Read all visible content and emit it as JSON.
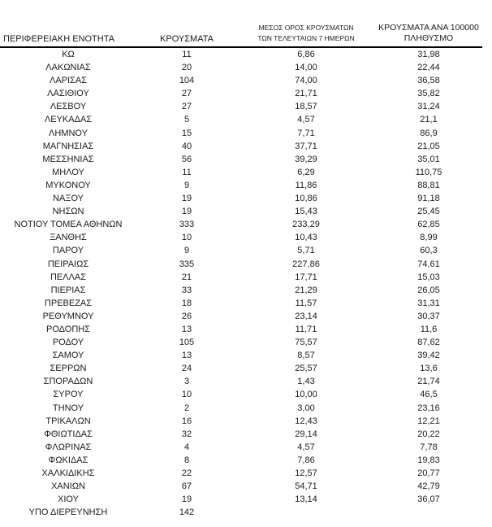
{
  "table": {
    "headers": {
      "region": "ΠΕΡΙΦΕΡΕΙΑΚΗ ΕΝΟΤΗΤΑ",
      "cases": "ΚΡΟΥΣΜΑΤΑ",
      "avg7_line1": "ΜΕΣΟΣ ΟΡΟΣ ΚΡΟΥΣΜΑΤΩΝ",
      "avg7_line2": "ΤΩΝ ΤΕΛΕΥΤΑΙΩΝ 7 ΗΜΕΡΩΝ",
      "per100k_line1": "ΚΡΟΥΣΜΑΤΑ ΑΝΑ 100000",
      "per100k_line2": "ΠΛΗΘΥΣΜΟ"
    },
    "rows": [
      {
        "region": "ΚΩ",
        "cases": "11",
        "avg7": "6,86",
        "per100k": "31,98"
      },
      {
        "region": "ΛΑΚΩΝΙΑΣ",
        "cases": "20",
        "avg7": "14,00",
        "per100k": "22,44"
      },
      {
        "region": "ΛΑΡΙΣΑΣ",
        "cases": "104",
        "avg7": "74,00",
        "per100k": "36,58"
      },
      {
        "region": "ΛΑΣΙΘΙΟΥ",
        "cases": "27",
        "avg7": "21,71",
        "per100k": "35,82"
      },
      {
        "region": "ΛΕΣΒΟΥ",
        "cases": "27",
        "avg7": "18,57",
        "per100k": "31,24"
      },
      {
        "region": "ΛΕΥΚΑΔΑΣ",
        "cases": "5",
        "avg7": "4,57",
        "per100k": "21,1"
      },
      {
        "region": "ΛΗΜΝΟΥ",
        "cases": "15",
        "avg7": "7,71",
        "per100k": "86,9"
      },
      {
        "region": "ΜΑΓΝΗΣΙΑΣ",
        "cases": "40",
        "avg7": "37,71",
        "per100k": "21,05"
      },
      {
        "region": "ΜΕΣΣΗΝΙΑΣ",
        "cases": "56",
        "avg7": "39,29",
        "per100k": "35,01"
      },
      {
        "region": "ΜΗΛΟΥ",
        "cases": "11",
        "avg7": "6,29",
        "per100k": "110,75"
      },
      {
        "region": "ΜΥΚΟΝΟΥ",
        "cases": "9",
        "avg7": "11,86",
        "per100k": "88,81"
      },
      {
        "region": "ΝΑΞΟΥ",
        "cases": "19",
        "avg7": "10,86",
        "per100k": "91,18"
      },
      {
        "region": "ΝΗΣΩΝ",
        "cases": "19",
        "avg7": "15,43",
        "per100k": "25,45"
      },
      {
        "region": "ΝΟΤΙΟΥ ΤΟΜΕΑ ΑΘΗΝΩΝ",
        "cases": "333",
        "avg7": "233,29",
        "per100k": "62,85"
      },
      {
        "region": "ΞΑΝΘΗΣ",
        "cases": "10",
        "avg7": "10,43",
        "per100k": "8,99"
      },
      {
        "region": "ΠΑΡΟΥ",
        "cases": "9",
        "avg7": "5,71",
        "per100k": "60,3"
      },
      {
        "region": "ΠΕΙΡΑΙΩΣ",
        "cases": "335",
        "avg7": "227,86",
        "per100k": "74,61"
      },
      {
        "region": "ΠΕΛΛΑΣ",
        "cases": "21",
        "avg7": "17,71",
        "per100k": "15,03"
      },
      {
        "region": "ΠΙΕΡΙΑΣ",
        "cases": "33",
        "avg7": "21,29",
        "per100k": "26,05"
      },
      {
        "region": "ΠΡΕΒΕΖΑΣ",
        "cases": "18",
        "avg7": "11,57",
        "per100k": "31,31"
      },
      {
        "region": "ΡΕΘΥΜΝΟΥ",
        "cases": "26",
        "avg7": "23,14",
        "per100k": "30,37"
      },
      {
        "region": "ΡΟΔΟΠΗΣ",
        "cases": "13",
        "avg7": "11,71",
        "per100k": "11,6"
      },
      {
        "region": "ΡΟΔΟΥ",
        "cases": "105",
        "avg7": "75,57",
        "per100k": "87,62"
      },
      {
        "region": "ΣΑΜΟΥ",
        "cases": "13",
        "avg7": "8,57",
        "per100k": "39,42"
      },
      {
        "region": "ΣΕΡΡΩΝ",
        "cases": "24",
        "avg7": "25,57",
        "per100k": "13,6"
      },
      {
        "region": "ΣΠΟΡΑΔΩΝ",
        "cases": "3",
        "avg7": "1,43",
        "per100k": "21,74"
      },
      {
        "region": "ΣΥΡΟΥ",
        "cases": "10",
        "avg7": "10,00",
        "per100k": "46,5"
      },
      {
        "region": "ΤΗΝΟΥ",
        "cases": "2",
        "avg7": "3,00",
        "per100k": "23,16"
      },
      {
        "region": "ΤΡΙΚΑΛΩΝ",
        "cases": "16",
        "avg7": "12,43",
        "per100k": "12,21"
      },
      {
        "region": "ΦΘΙΩΤΙΔΑΣ",
        "cases": "32",
        "avg7": "29,14",
        "per100k": "20,22"
      },
      {
        "region": "ΦΛΩΡΙΝΑΣ",
        "cases": "4",
        "avg7": "4,57",
        "per100k": "7,78"
      },
      {
        "region": "ΦΩΚΙΔΑΣ",
        "cases": "8",
        "avg7": "7,86",
        "per100k": "19,83"
      },
      {
        "region": "ΧΑΛΚΙΔΙΚΗΣ",
        "cases": "22",
        "avg7": "12,57",
        "per100k": "20,77"
      },
      {
        "region": "ΧΑΝΙΩΝ",
        "cases": "67",
        "avg7": "54,71",
        "per100k": "42,79"
      },
      {
        "region": "ΧΙΟΥ",
        "cases": "19",
        "avg7": "13,14",
        "per100k": "36,07"
      },
      {
        "region": "ΥΠΟ ΔΙΕΡΕΥΝΗΣΗ",
        "cases": "142",
        "avg7": "",
        "per100k": ""
      }
    ]
  },
  "colors": {
    "text": "#1b1b1b",
    "header_rule": "#000000",
    "background": "#ffffff"
  }
}
